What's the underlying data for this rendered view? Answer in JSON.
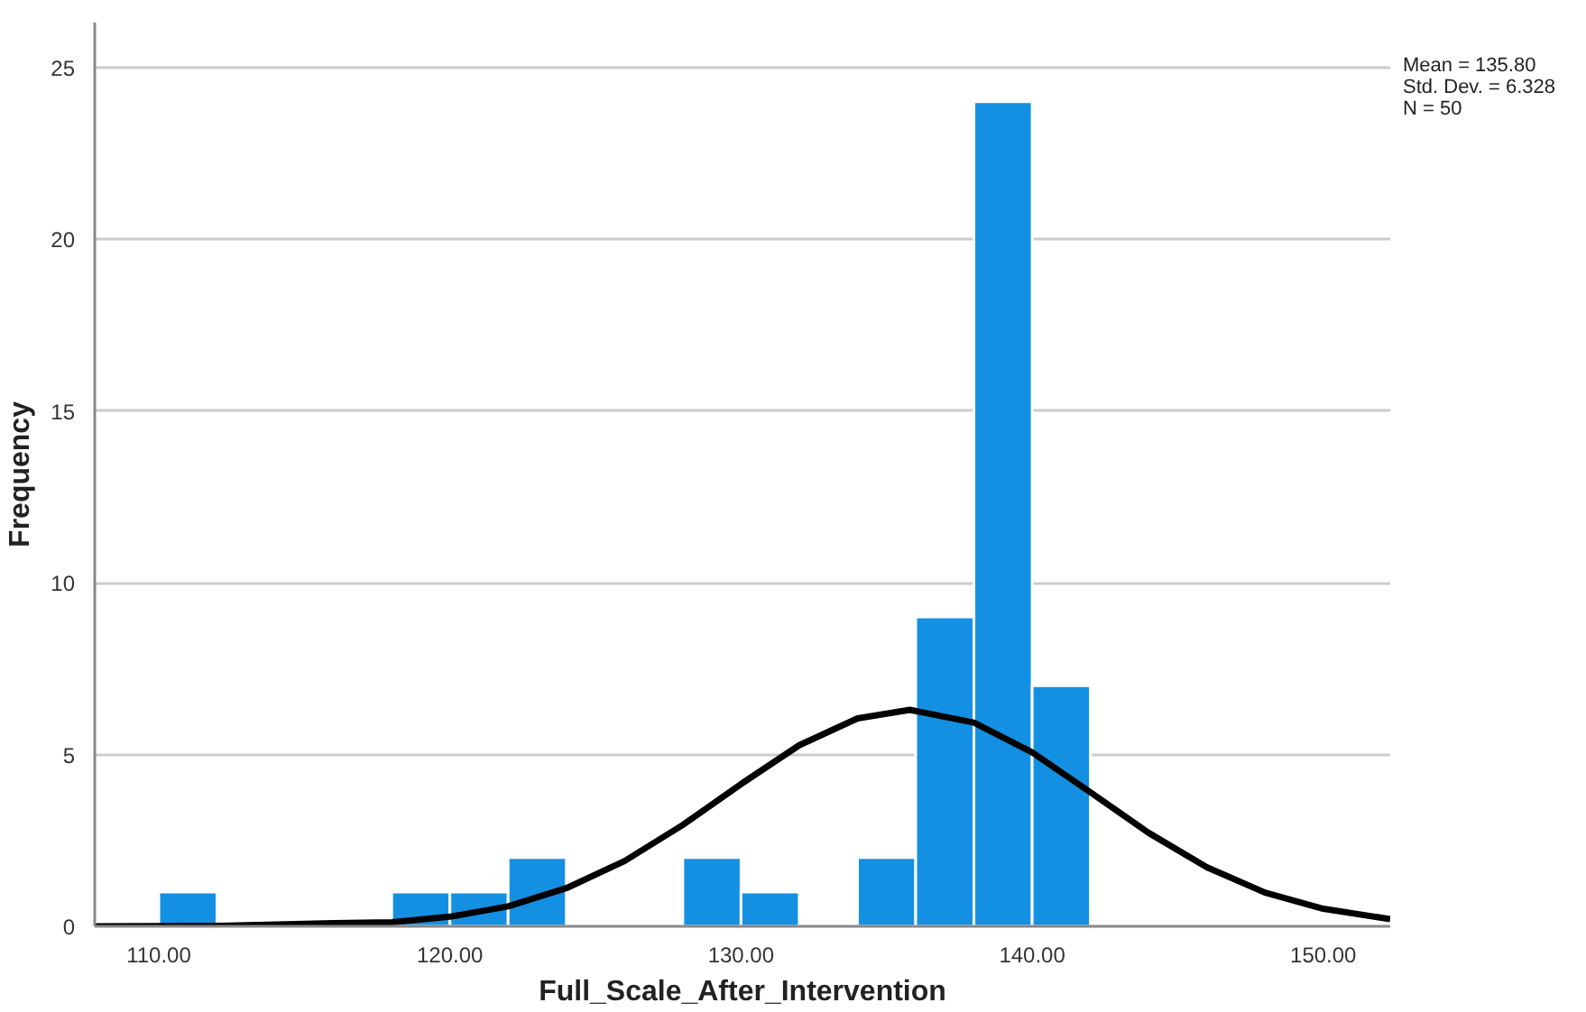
{
  "chart_data": {
    "type": "histogram",
    "xlabel": "Full_Scale_After_Intervention",
    "ylabel": "Frequency",
    "annotations": [
      "Mean = 135.80",
      "Std. Dev. = 6.328",
      "N = 50"
    ],
    "series": [
      {
        "color": "#1490e3",
        "bins": [
          110,
          112,
          114,
          116,
          118,
          120,
          122,
          124,
          126,
          128,
          130,
          132,
          134,
          136,
          138,
          140,
          142
        ],
        "values": [
          1,
          0,
          0,
          0,
          1,
          1,
          2,
          0,
          0,
          2,
          1,
          0,
          2,
          9,
          24,
          7
        ]
      },
      {
        "type": "line",
        "color": "#000000",
        "x": [
          107.8,
          112,
          116,
          118,
          120,
          122,
          124,
          126,
          128,
          130,
          132,
          134,
          135.8,
          138,
          140,
          142,
          144,
          146,
          148,
          150,
          152.3
        ],
        "values": [
          0,
          0.01,
          0.09,
          0.12,
          0.28,
          0.58,
          1.11,
          1.9,
          2.95,
          4.14,
          5.27,
          6.05,
          6.3,
          5.93,
          5.06,
          3.9,
          2.72,
          1.72,
          0.98,
          0.51,
          0.21
        ]
      }
    ],
    "xlim": [
      107.8,
      152.3
    ],
    "ylim": [
      0,
      26.3
    ],
    "xticks": [
      {
        "value": 110,
        "label": "110.00"
      },
      {
        "value": 120,
        "label": "120.00"
      },
      {
        "value": 130,
        "label": "130.00"
      },
      {
        "value": 140,
        "label": "140.00"
      },
      {
        "value": 150,
        "label": "150.00"
      }
    ],
    "yticks": [
      0,
      5,
      10,
      15,
      20,
      25
    ],
    "grid": "y"
  }
}
